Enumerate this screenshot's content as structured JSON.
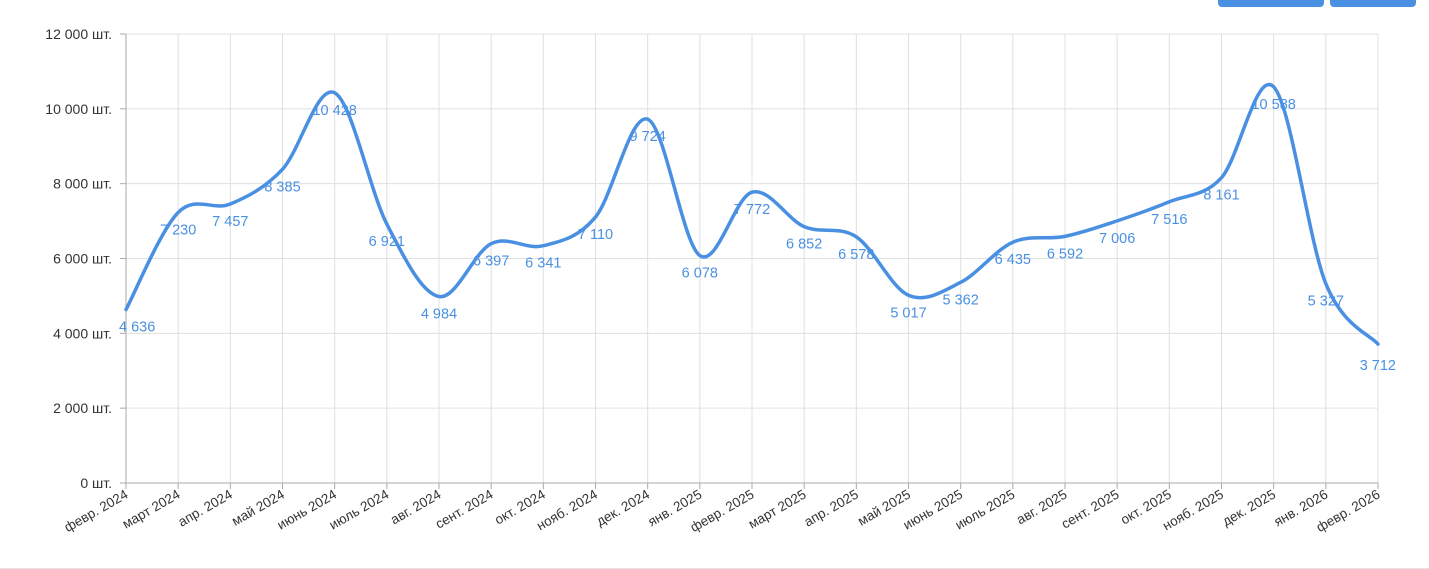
{
  "buttons": [
    {
      "label": "",
      "color": "#4a90e2"
    },
    {
      "label": "",
      "color": "#4a90e2"
    }
  ],
  "colors": {
    "line": "#4a90e2",
    "grid": "#e0e0e0",
    "axis": "#aaaaaa",
    "tick_text": "#333333"
  },
  "chart_data": {
    "type": "line",
    "title": "",
    "xlabel": "",
    "ylabel": "",
    "categories": [
      "февр. 2024",
      "март 2024",
      "апр. 2024",
      "май 2024",
      "июнь 2024",
      "июль 2024",
      "авг. 2024",
      "сент. 2024",
      "окт. 2024",
      "нояб. 2024",
      "дек. 2024",
      "янв. 2025",
      "февр. 2025",
      "март 2025",
      "апр. 2025",
      "май 2025",
      "июнь 2025",
      "июль 2025",
      "авг. 2025",
      "сент. 2025",
      "окт. 2025",
      "нояб. 2025",
      "дек. 2025",
      "янв. 2026",
      "февр. 2026"
    ],
    "series": [
      {
        "values": [
          4636,
          7230,
          7457,
          8385,
          10428,
          6921,
          4984,
          6397,
          6341,
          7110,
          9724,
          6078,
          7772,
          6852,
          6578,
          5017,
          5362,
          6435,
          6592,
          7006,
          7516,
          8161,
          10588,
          5327,
          3712
        ],
        "labels": [
          "4 636",
          "7 230",
          "7 457",
          "8 385",
          "10 428",
          "6 921",
          "4 984",
          "6 397",
          "6 341",
          "7 110",
          "9 724",
          "6 078",
          "7 772",
          "6 852",
          "6 578",
          "5 017",
          "5 362",
          "6 435",
          "6 592",
          "7 006",
          "7 516",
          "8 161",
          "10 588",
          "5 327",
          "3 712"
        ]
      }
    ],
    "ylim": [
      0,
      12000
    ],
    "yticks": [
      "0 шт.",
      "2 000 шт.",
      "4 000 шт.",
      "6 000 шт.",
      "8 000 шт.",
      "10 000 шт.",
      "12 000 шт."
    ],
    "grid": true,
    "legend": "none"
  }
}
